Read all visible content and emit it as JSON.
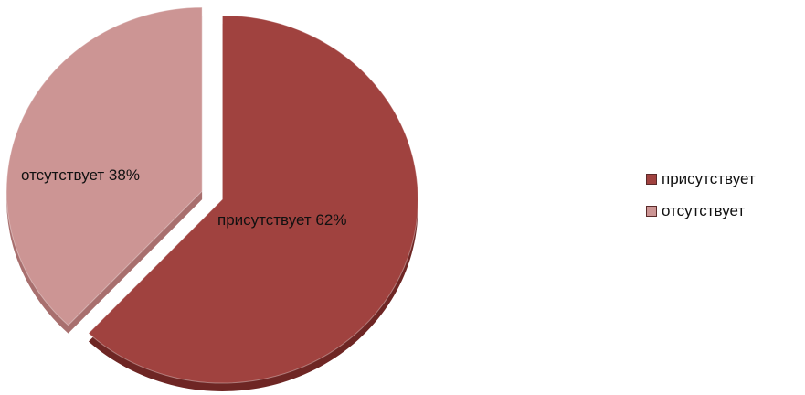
{
  "chart_data": {
    "type": "pie",
    "title": "",
    "slices": [
      {
        "name": "присутствует",
        "value": 62,
        "label": "присутствует 62%",
        "color": "#a0423f",
        "side_color": "#6e2624"
      },
      {
        "name": "отсутствует",
        "value": 38,
        "label": "отсутствует 38%",
        "color": "#cc9594",
        "side_color": "#a86f6e"
      }
    ],
    "legend": {
      "position": "right",
      "items": [
        "присутствует",
        "отсутствует"
      ]
    }
  }
}
